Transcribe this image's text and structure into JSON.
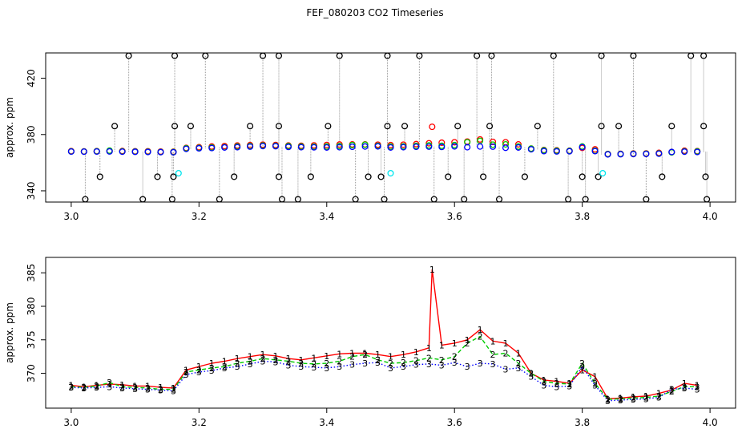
{
  "figure_title": "FEF_080203  CO2 Timeseries",
  "chart_data": [
    {
      "type": "scatter",
      "title": "",
      "xlabel": "",
      "ylabel": "approx. ppm",
      "xlim": [
        2.96,
        4.04
      ],
      "ylim": [
        332,
        438
      ],
      "xticks": [
        3.0,
        3.2,
        3.4,
        3.6,
        3.8,
        4.0
      ],
      "xtick_labels": [
        "3.0",
        "3.2",
        "3.4",
        "3.6",
        "3.8",
        "4.0"
      ],
      "yticks": [
        340,
        380,
        420
      ],
      "ytick_labels": [
        "340",
        "380",
        "420"
      ],
      "grid": false,
      "legend": "none",
      "colors": {
        "channel1": "#ff0000",
        "channel2": "#00cc00",
        "channel3": "#0000ff",
        "outlier": "#000000",
        "flagged": "#00e5ee",
        "segment": "#999999"
      },
      "series": [
        {
          "name": "channel 1",
          "color": "#ff0000",
          "x": [
            3.0,
            3.02,
            3.04,
            3.06,
            3.08,
            3.1,
            3.12,
            3.14,
            3.16,
            3.18,
            3.2,
            3.22,
            3.24,
            3.26,
            3.28,
            3.3,
            3.32,
            3.34,
            3.36,
            3.38,
            3.4,
            3.42,
            3.44,
            3.46,
            3.48,
            3.5,
            3.52,
            3.54,
            3.56,
            3.565,
            3.58,
            3.6,
            3.62,
            3.64,
            3.66,
            3.68,
            3.7,
            3.72,
            3.74,
            3.76,
            3.78,
            3.8,
            3.82,
            3.84,
            3.86,
            3.88,
            3.9,
            3.92,
            3.94,
            3.96,
            3.98
          ],
          "y": [
            368.2,
            368.0,
            368.2,
            368.4,
            368.3,
            368.1,
            368.1,
            367.9,
            367.8,
            370.5,
            371.0,
            371.5,
            371.8,
            372.2,
            372.5,
            372.8,
            372.6,
            372.2,
            372.0,
            372.3,
            372.6,
            372.9,
            373.0,
            373.0,
            372.8,
            372.5,
            372.8,
            373.2,
            373.8,
            385.5,
            374.2,
            374.5,
            375.0,
            376.5,
            374.8,
            374.5,
            373.0,
            370.0,
            369.0,
            368.8,
            368.5,
            370.5,
            369.5,
            366.2,
            366.3,
            366.5,
            366.6,
            367.0,
            367.5,
            368.5,
            368.2
          ]
        },
        {
          "name": "channel 2",
          "color": "#00cc00",
          "x": [
            3.0,
            3.02,
            3.04,
            3.06,
            3.08,
            3.1,
            3.12,
            3.14,
            3.16,
            3.18,
            3.2,
            3.22,
            3.24,
            3.26,
            3.28,
            3.3,
            3.32,
            3.34,
            3.36,
            3.38,
            3.4,
            3.42,
            3.44,
            3.46,
            3.48,
            3.5,
            3.52,
            3.54,
            3.56,
            3.58,
            3.6,
            3.62,
            3.64,
            3.66,
            3.68,
            3.7,
            3.72,
            3.74,
            3.76,
            3.78,
            3.8,
            3.82,
            3.84,
            3.86,
            3.88,
            3.9,
            3.92,
            3.94,
            3.96,
            3.98
          ],
          "y": [
            368.0,
            367.9,
            368.1,
            368.6,
            368.0,
            367.9,
            367.8,
            367.6,
            367.6,
            370.2,
            370.5,
            370.8,
            371.0,
            371.5,
            371.8,
            372.2,
            372.0,
            371.8,
            371.5,
            371.4,
            371.5,
            371.8,
            372.5,
            372.8,
            372.0,
            371.5,
            371.6,
            371.9,
            372.3,
            372.0,
            372.5,
            374.5,
            375.5,
            372.8,
            373.0,
            371.5,
            370.0,
            368.8,
            368.5,
            368.4,
            371.5,
            368.5,
            366.1,
            366.2,
            366.3,
            366.4,
            366.6,
            367.3,
            368.0,
            368.0
          ]
        },
        {
          "name": "channel 3",
          "color": "#0000ff",
          "x": [
            3.0,
            3.02,
            3.04,
            3.06,
            3.08,
            3.1,
            3.12,
            3.14,
            3.16,
            3.18,
            3.2,
            3.22,
            3.24,
            3.26,
            3.28,
            3.3,
            3.32,
            3.34,
            3.36,
            3.38,
            3.4,
            3.42,
            3.44,
            3.46,
            3.48,
            3.5,
            3.52,
            3.54,
            3.56,
            3.58,
            3.6,
            3.62,
            3.64,
            3.66,
            3.68,
            3.7,
            3.72,
            3.74,
            3.76,
            3.78,
            3.8,
            3.82,
            3.84,
            3.86,
            3.88,
            3.9,
            3.92,
            3.94,
            3.96,
            3.98
          ],
          "y": [
            367.9,
            367.8,
            367.9,
            368.0,
            367.8,
            367.7,
            367.6,
            367.5,
            367.4,
            369.8,
            370.2,
            370.4,
            370.8,
            371.0,
            371.4,
            371.8,
            371.7,
            371.2,
            371.0,
            370.9,
            370.8,
            371.0,
            371.3,
            371.5,
            371.6,
            370.8,
            371.0,
            371.3,
            371.4,
            371.2,
            371.6,
            371.0,
            371.5,
            371.4,
            370.6,
            370.8,
            369.5,
            368.2,
            368.0,
            368.1,
            371.0,
            368.2,
            365.9,
            366.0,
            366.1,
            366.2,
            366.4,
            367.6,
            367.8,
            367.6
          ]
        },
        {
          "name": "high outliers",
          "color": "#000000",
          "x": [
            3.09,
            3.162,
            3.21,
            3.3,
            3.325,
            3.42,
            3.495,
            3.545,
            3.635,
            3.658,
            3.755,
            3.83,
            3.88,
            3.97,
            3.99
          ],
          "y": [
            436,
            436,
            436,
            436,
            436,
            436,
            436,
            436,
            436,
            436,
            436,
            436,
            436,
            436,
            436
          ]
        },
        {
          "name": "mid outliers",
          "color": "#000000",
          "x": [
            3.068,
            3.162,
            3.187,
            3.28,
            3.325,
            3.402,
            3.495,
            3.522,
            3.605,
            3.655,
            3.73,
            3.83,
            3.857,
            3.94,
            3.99
          ],
          "y": [
            386,
            386,
            386,
            386,
            386,
            386,
            386,
            386,
            386,
            386,
            386,
            386,
            386,
            386,
            386
          ]
        },
        {
          "name": "low outliers",
          "color": "#000000",
          "x": [
            3.045,
            3.135,
            3.16,
            3.255,
            3.325,
            3.375,
            3.465,
            3.485,
            3.59,
            3.645,
            3.71,
            3.8,
            3.825,
            3.925,
            3.993
          ],
          "y": [
            350,
            350,
            350,
            350,
            350,
            350,
            350,
            350,
            350,
            350,
            350,
            350,
            350,
            350,
            350
          ]
        },
        {
          "name": "bottom outliers",
          "color": "#000000",
          "x": [
            3.022,
            3.112,
            3.158,
            3.232,
            3.33,
            3.355,
            3.445,
            3.49,
            3.568,
            3.615,
            3.67,
            3.778,
            3.805,
            3.9,
            3.995
          ],
          "y": [
            334,
            334,
            334,
            334,
            334,
            334,
            334,
            334,
            334,
            334,
            334,
            334,
            334,
            334,
            334
          ]
        },
        {
          "name": "flagged",
          "color": "#00e5ee",
          "x": [
            3.168,
            3.5,
            3.832
          ],
          "y": [
            352.5,
            352.5,
            352.5
          ]
        }
      ]
    },
    {
      "type": "line",
      "title": "",
      "xlabel": "",
      "ylabel": "approx. ppm",
      "xlim": [
        2.96,
        4.04
      ],
      "ylim": [
        364.8,
        387.3
      ],
      "xticks": [
        3.0,
        3.2,
        3.4,
        3.6,
        3.8,
        4.0
      ],
      "xtick_labels": [
        "3.0",
        "3.2",
        "3.4",
        "3.6",
        "3.8",
        "4.0"
      ],
      "yticks": [
        370,
        375,
        380,
        385
      ],
      "ytick_labels": [
        "370",
        "375",
        "380",
        "385"
      ],
      "grid": false,
      "legend": "none",
      "plot_symbols": [
        "1",
        "2",
        "3"
      ],
      "series": [
        {
          "name": "1",
          "color": "#ff0000",
          "dash": "solid",
          "x": [
            3.0,
            3.02,
            3.04,
            3.06,
            3.08,
            3.1,
            3.12,
            3.14,
            3.16,
            3.18,
            3.2,
            3.22,
            3.24,
            3.26,
            3.28,
            3.3,
            3.32,
            3.34,
            3.36,
            3.38,
            3.4,
            3.42,
            3.44,
            3.46,
            3.48,
            3.5,
            3.52,
            3.54,
            3.56,
            3.565,
            3.58,
            3.6,
            3.62,
            3.64,
            3.66,
            3.68,
            3.7,
            3.72,
            3.74,
            3.76,
            3.78,
            3.8,
            3.82,
            3.84,
            3.86,
            3.88,
            3.9,
            3.92,
            3.94,
            3.96,
            3.98
          ],
          "y": [
            368.2,
            368.0,
            368.2,
            368.4,
            368.3,
            368.1,
            368.1,
            367.9,
            367.8,
            370.5,
            371.0,
            371.5,
            371.8,
            372.2,
            372.5,
            372.8,
            372.6,
            372.2,
            372.0,
            372.3,
            372.6,
            372.9,
            373.0,
            373.0,
            372.8,
            372.5,
            372.8,
            373.2,
            373.8,
            385.5,
            374.2,
            374.5,
            375.0,
            376.5,
            374.8,
            374.5,
            373.0,
            370.0,
            369.0,
            368.8,
            368.5,
            370.5,
            369.5,
            366.2,
            366.3,
            366.5,
            366.6,
            367.0,
            367.5,
            368.5,
            368.2
          ]
        },
        {
          "name": "2",
          "color": "#00cc00",
          "dash": "dashed",
          "x": [
            3.0,
            3.02,
            3.04,
            3.06,
            3.08,
            3.1,
            3.12,
            3.14,
            3.16,
            3.18,
            3.2,
            3.22,
            3.24,
            3.26,
            3.28,
            3.3,
            3.32,
            3.34,
            3.36,
            3.38,
            3.4,
            3.42,
            3.44,
            3.46,
            3.48,
            3.5,
            3.52,
            3.54,
            3.56,
            3.58,
            3.6,
            3.62,
            3.64,
            3.66,
            3.68,
            3.7,
            3.72,
            3.74,
            3.76,
            3.78,
            3.8,
            3.82,
            3.84,
            3.86,
            3.88,
            3.9,
            3.92,
            3.94,
            3.96,
            3.98
          ],
          "y": [
            368.0,
            367.9,
            368.1,
            368.6,
            368.0,
            367.9,
            367.8,
            367.6,
            367.6,
            370.2,
            370.5,
            370.8,
            371.0,
            371.5,
            371.8,
            372.2,
            372.0,
            371.8,
            371.5,
            371.4,
            371.5,
            371.8,
            372.5,
            372.8,
            372.0,
            371.5,
            371.6,
            371.9,
            372.3,
            372.0,
            372.5,
            374.5,
            375.5,
            372.8,
            373.0,
            371.5,
            370.0,
            368.8,
            368.5,
            368.4,
            371.5,
            368.5,
            366.1,
            366.2,
            366.3,
            366.4,
            366.6,
            367.3,
            368.0,
            368.0
          ]
        },
        {
          "name": "3",
          "color": "#0000ff",
          "dash": "dotted",
          "x": [
            3.0,
            3.02,
            3.04,
            3.06,
            3.08,
            3.1,
            3.12,
            3.14,
            3.16,
            3.18,
            3.2,
            3.22,
            3.24,
            3.26,
            3.28,
            3.3,
            3.32,
            3.34,
            3.36,
            3.38,
            3.4,
            3.42,
            3.44,
            3.46,
            3.48,
            3.5,
            3.52,
            3.54,
            3.56,
            3.58,
            3.6,
            3.62,
            3.64,
            3.66,
            3.68,
            3.7,
            3.72,
            3.74,
            3.76,
            3.78,
            3.8,
            3.82,
            3.84,
            3.86,
            3.88,
            3.9,
            3.92,
            3.94,
            3.96,
            3.98
          ],
          "y": [
            367.9,
            367.8,
            367.9,
            368.0,
            367.8,
            367.7,
            367.6,
            367.5,
            367.4,
            369.8,
            370.2,
            370.4,
            370.8,
            371.0,
            371.4,
            371.8,
            371.7,
            371.2,
            371.0,
            370.9,
            370.8,
            371.0,
            371.3,
            371.5,
            371.6,
            370.8,
            371.0,
            371.3,
            371.4,
            371.2,
            371.6,
            371.0,
            371.5,
            371.4,
            370.6,
            370.8,
            369.5,
            368.2,
            368.0,
            368.1,
            371.0,
            368.2,
            365.9,
            366.0,
            366.1,
            366.2,
            366.4,
            367.6,
            367.8,
            367.6
          ]
        }
      ]
    }
  ]
}
